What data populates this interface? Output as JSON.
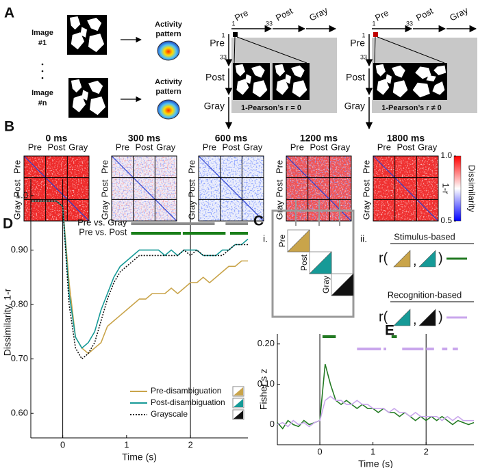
{
  "panel_labels": {
    "a": "A",
    "b": "B",
    "c": "C",
    "d": "D",
    "e": "E"
  },
  "panel_a": {
    "image_first": [
      "Image",
      "#1"
    ],
    "image_last": [
      "Image",
      "#n"
    ],
    "activity": [
      "Activity",
      "pattern"
    ],
    "axis_labels": [
      "Pre",
      "Post",
      "Gray"
    ],
    "index_labels": [
      1,
      33
    ],
    "results": [
      "1-Pearson’s r = 0",
      "1-Pearson’s r ≠ 0"
    ]
  },
  "panel_b": {
    "times": [
      "0 ms",
      "300 ms",
      "600 ms",
      "1200 ms",
      "1800 ms"
    ],
    "axis_labels": [
      "Pre",
      "Post",
      "Gray"
    ],
    "colorbar": {
      "label": "Dissimilarity",
      "sublabel": "1-r",
      "lim": [
        0.5,
        1.0
      ],
      "ticks": [
        {
          "value": 1.0,
          "label": "1.0"
        },
        0.5
      ],
      "colors": [
        "#0000ff",
        "#ffffff",
        "#ff0000"
      ]
    }
  },
  "panel_c": {
    "part_labels": [
      "i.",
      "ii."
    ],
    "axis_labels": [
      "Pre",
      "Post",
      "Gray"
    ],
    "comparisons": [
      "Stimulus-based",
      "Recognition-based"
    ],
    "r_open": "r(",
    "separator": ",",
    "r_close": ")"
  },
  "chart_data": [
    {
      "type": "line",
      "x": [
        -0.5,
        -0.4,
        -0.3,
        -0.2,
        -0.1,
        0,
        0.1,
        0.2,
        0.3,
        0.4,
        0.5,
        0.6,
        0.7,
        0.8,
        0.9,
        1,
        1.1,
        1.2,
        1.3,
        1.4,
        1.5,
        1.6,
        1.7,
        1.8,
        1.9,
        2,
        2.1,
        2.2,
        2.3,
        2.4,
        2.5,
        2.6,
        2.7,
        2.8,
        2.9
      ],
      "series": [
        {
          "name": "Pre-disambiguation",
          "color": "#c9a44a",
          "values": [
            0.99,
            0.99,
            0.99,
            0.99,
            0.99,
            0.98,
            0.84,
            0.74,
            0.72,
            0.71,
            0.72,
            0.73,
            0.76,
            0.77,
            0.78,
            0.79,
            0.8,
            0.81,
            0.81,
            0.82,
            0.82,
            0.82,
            0.83,
            0.82,
            0.83,
            0.84,
            0.84,
            0.85,
            0.84,
            0.85,
            0.86,
            0.87,
            0.87,
            0.88,
            0.88
          ]
        },
        {
          "name": "Post-disambiguation",
          "color": "#169a97",
          "values": [
            0.99,
            0.99,
            0.99,
            0.99,
            0.99,
            0.98,
            0.82,
            0.74,
            0.72,
            0.73,
            0.75,
            0.79,
            0.82,
            0.85,
            0.87,
            0.88,
            0.89,
            0.9,
            0.9,
            0.9,
            0.9,
            0.89,
            0.9,
            0.89,
            0.9,
            0.9,
            0.9,
            0.89,
            0.89,
            0.89,
            0.9,
            0.9,
            0.91,
            0.91,
            0.92
          ]
        },
        {
          "name": "Grayscale",
          "color": "#111111",
          "dash": "dotted",
          "values": [
            0.99,
            0.99,
            0.99,
            0.99,
            0.99,
            0.98,
            0.8,
            0.72,
            0.7,
            0.71,
            0.73,
            0.77,
            0.81,
            0.84,
            0.86,
            0.87,
            0.88,
            0.89,
            0.89,
            0.89,
            0.89,
            0.89,
            0.89,
            0.89,
            0.9,
            0.89,
            0.9,
            0.89,
            0.89,
            0.89,
            0.89,
            0.9,
            0.91,
            0.91,
            0.91
          ]
        }
      ],
      "xlim": [
        -0.5,
        2.9
      ],
      "xticks": [
        0,
        1,
        2
      ],
      "ylim": [
        0.555,
        1.03
      ],
      "yticks": [
        {
          "value": 0.6,
          "label": "0.60"
        },
        {
          "value": 0.7,
          "label": "0.70"
        },
        {
          "value": 0.8,
          "label": "0.80"
        },
        {
          "value": 0.9,
          "label": "0.90"
        },
        {
          "value": 1.0,
          "label": "1.0"
        }
      ],
      "xlabel": "Time (s)",
      "ylabel": "Dissimilarity, 1-r",
      "vlines": [
        0,
        2
      ],
      "significance": [
        {
          "label": "Pre vs. Gray",
          "color": "#8c8c8c",
          "segments": [
            [
              1.07,
              2.38
            ],
            [
              2.55,
              2.9
            ]
          ]
        },
        {
          "label": "Pre vs. Post",
          "color": "#1a7f1a",
          "segments": [
            [
              1.07,
              1.85
            ],
            [
              1.88,
              2.55
            ],
            [
              2.62,
              2.9
            ]
          ]
        }
      ]
    },
    {
      "type": "line",
      "x": [
        -0.8,
        -0.7,
        -0.6,
        -0.5,
        -0.4,
        -0.3,
        -0.2,
        -0.1,
        0,
        0.1,
        0.2,
        0.3,
        0.4,
        0.5,
        0.6,
        0.7,
        0.8,
        0.9,
        1,
        1.1,
        1.2,
        1.3,
        1.4,
        1.5,
        1.6,
        1.7,
        1.8,
        1.9,
        2,
        2.1,
        2.2,
        2.3,
        2.4,
        2.5,
        2.6,
        2.7,
        2.8,
        2.9
      ],
      "series": [
        {
          "color": "#237a23",
          "values": [
            0.005,
            -0.01,
            0.01,
            0,
            -0.005,
            0.01,
            0,
            0.005,
            0.01,
            0.15,
            0.1,
            0.06,
            0.05,
            0.06,
            0.05,
            0.04,
            0.05,
            0.04,
            0.04,
            0.03,
            0.04,
            0.03,
            0.03,
            0.02,
            0.03,
            0.02,
            0.01,
            0.02,
            0.01,
            0.02,
            0.01,
            0.02,
            0.01,
            0,
            0.01,
            0.005,
            0,
            0.005
          ]
        },
        {
          "color": "#c9a6ec",
          "values": [
            0,
            0.005,
            -0.005,
            0.01,
            0,
            0.005,
            -0.005,
            0.005,
            0.01,
            0.06,
            0.07,
            0.06,
            0.06,
            0.05,
            0.05,
            0.06,
            0.05,
            0.05,
            0.04,
            0.04,
            0.04,
            0.03,
            0.04,
            0.03,
            0.03,
            0.02,
            0.03,
            0.02,
            0.02,
            0.02,
            0.02,
            0.01,
            0.02,
            0.01,
            0.02,
            0.01,
            0.01,
            0.01
          ]
        }
      ],
      "xlim": [
        -0.8,
        2.9
      ],
      "xticks": [
        0,
        1,
        2
      ],
      "ylim": [
        -0.05,
        0.225
      ],
      "yticks": [
        0,
        {
          "value": 0.1,
          "label": "0.10"
        },
        {
          "value": 0.2,
          "label": "0.20"
        }
      ],
      "xlabel": "Time (s)",
      "ylabel": "Fisher’s z",
      "vlines": [
        0,
        2
      ],
      "significance": [
        {
          "color": "#237a23",
          "segments": [
            [
              0.05,
              0.3
            ],
            [
              1.35,
              1.45
            ]
          ]
        },
        {
          "color": "#c9a6ec",
          "segments": [
            [
              0.7,
              1.15
            ],
            [
              1.2,
              1.25
            ],
            [
              1.55,
              1.95
            ],
            [
              2.0,
              2.15
            ],
            [
              2.3,
              2.4
            ],
            [
              2.5,
              2.6
            ]
          ]
        }
      ]
    }
  ]
}
